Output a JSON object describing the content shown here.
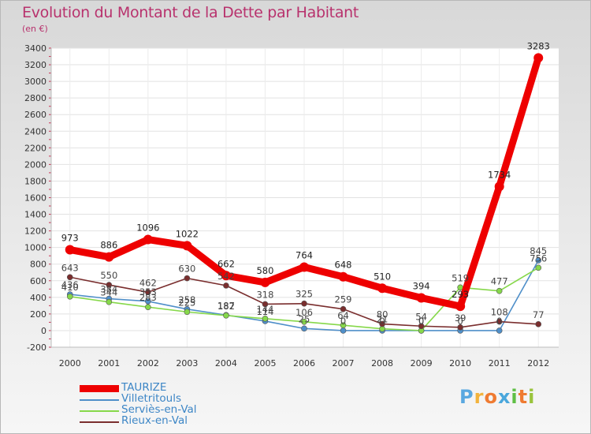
{
  "header": {
    "title": "Evolution du Montant de la Dette par Habitant",
    "subtitle": "(en €)"
  },
  "chart_data": {
    "type": "line",
    "title": "Evolution du Montant de la Dette par Habitant",
    "subtitle": "(en €)",
    "xlabel": "",
    "ylabel": "",
    "x": [
      "2000",
      "2001",
      "2002",
      "2003",
      "2004",
      "2005",
      "2006",
      "2007",
      "2008",
      "2009",
      "2010",
      "2011",
      "2012"
    ],
    "ylim": [
      -200,
      3400
    ],
    "yticks": [
      -200,
      0,
      200,
      400,
      600,
      800,
      1000,
      1200,
      1400,
      1600,
      1800,
      2000,
      2200,
      2400,
      2600,
      2800,
      3000,
      3200,
      3400
    ],
    "grid": true,
    "legend_position": "bottom-left",
    "series": [
      {
        "name": "TAURIZE",
        "color": "#ee0000",
        "values": [
          973,
          886,
          1096,
          1022,
          662,
          580,
          764,
          648,
          510,
          394,
          293,
          1734,
          3283
        ],
        "labels": [
          "973",
          "886",
          "1096",
          "1022",
          "662",
          "580",
          "764",
          "648",
          "510",
          "394",
          "293",
          "1734",
          "3283"
        ]
      },
      {
        "name": "Villetritouls",
        "color": "#4f8fc9",
        "values": [
          436,
          384,
          353,
          258,
          187,
          114,
          25,
          0,
          0,
          0,
          0,
          0,
          845
        ],
        "labels": [
          "436",
          "384",
          "353",
          "258",
          "187",
          "114",
          "25",
          "0",
          "0",
          "0",
          "0",
          "0",
          "845"
        ]
      },
      {
        "name": "Serviès-en-Val",
        "color": "#86d84a",
        "values": [
          410,
          344,
          283,
          225,
          182,
          144,
          106,
          64,
          21,
          0,
          519,
          477,
          756
        ],
        "labels": [
          "410",
          "344",
          "283",
          "225",
          "182",
          "144",
          "106",
          "64",
          "21",
          "0",
          "519",
          "477",
          "756"
        ]
      },
      {
        "name": "Rieux-en-Val",
        "color": "#7a2e2e",
        "values": [
          643,
          550,
          462,
          630,
          542,
          318,
          325,
          259,
          80,
          54,
          39,
          108,
          77
        ],
        "labels": [
          "643",
          "550",
          "462",
          "630",
          "542",
          "318",
          "325",
          "259",
          "80",
          "54",
          "39",
          "108",
          "77"
        ]
      }
    ]
  },
  "brand": {
    "letters": [
      "P",
      "r",
      "o",
      "x",
      "i",
      "t",
      "i"
    ],
    "colors": [
      "#5aa8e0",
      "#f2b33d",
      "#ef7b31",
      "#4aa7dc",
      "#5fbf45",
      "#ef7b31",
      "#9ac43c"
    ]
  }
}
